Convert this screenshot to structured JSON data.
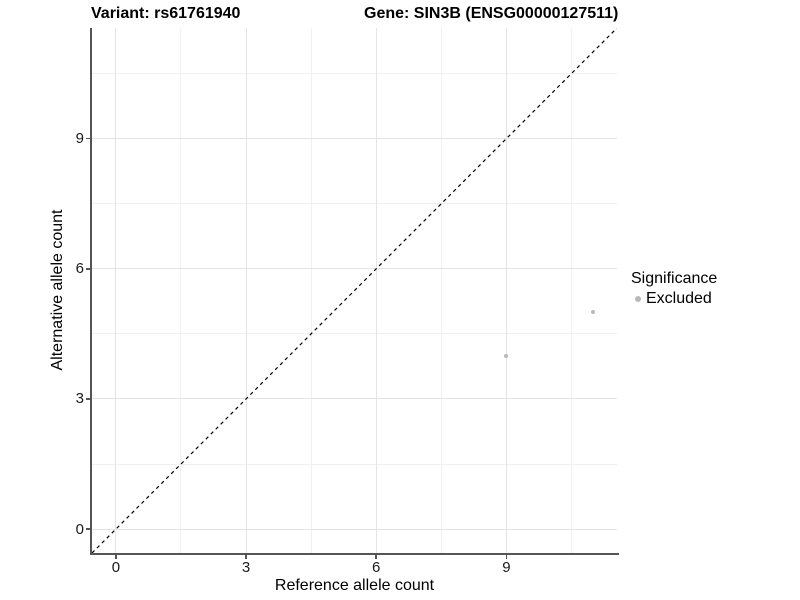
{
  "titles": {
    "variant": "Variant: rs61761940",
    "gene": "Gene: SIN3B (ENSG00000127511)"
  },
  "chart_data": {
    "type": "scatter",
    "xlabel": "Reference allele count",
    "ylabel": "Alternative allele count",
    "xlim": [
      -0.55,
      11.55
    ],
    "ylim": [
      -0.55,
      11.55
    ],
    "x_ticks": [
      0,
      3,
      6,
      9
    ],
    "y_ticks": [
      0,
      3,
      6,
      9
    ],
    "x_minor_gridlines": [
      1.5,
      4.5,
      7.5,
      10.5
    ],
    "y_minor_gridlines": [
      1.5,
      4.5,
      7.5,
      10.5
    ],
    "grid": "major-and-minor",
    "reference_line": {
      "type": "identity",
      "slope": 1,
      "intercept": 0,
      "style": "dashed",
      "color": "#000000"
    },
    "series": [
      {
        "name": "Excluded",
        "color": "#b8b8b8",
        "points": [
          {
            "x": 9,
            "y": 4
          },
          {
            "x": 11,
            "y": 5
          }
        ]
      }
    ],
    "legend": {
      "title": "Significance",
      "position": "right",
      "items": [
        {
          "label": "Excluded",
          "color": "#b8b8b8"
        }
      ]
    }
  },
  "colors": {
    "background": "#ffffff",
    "axis_line": "#555555",
    "tick_label": "#1a1a1a",
    "grid_major": "#e4e4e4",
    "grid_minor": "#f0f0f0",
    "point": "#b8b8b8"
  }
}
